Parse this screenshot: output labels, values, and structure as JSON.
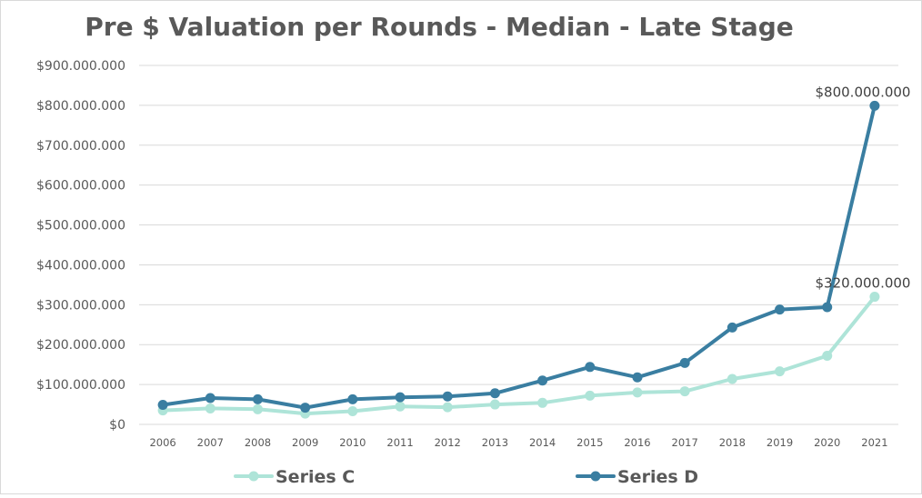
{
  "chart_data": {
    "type": "line",
    "title": "Pre $ Valuation per Rounds - Median - Late Stage",
    "xlabel": "",
    "ylabel": "",
    "x": [
      "2006",
      "2007",
      "2008",
      "2009",
      "2010",
      "2011",
      "2012",
      "2013",
      "2014",
      "2015",
      "2016",
      "2017",
      "2018",
      "2019",
      "2020",
      "2021"
    ],
    "ylim": [
      0,
      900000000
    ],
    "yticks": [
      0,
      100000000,
      200000000,
      300000000,
      400000000,
      500000000,
      600000000,
      700000000,
      800000000,
      900000000
    ],
    "ytick_labels": [
      "$0",
      "$100.000.000",
      "$200.000.000",
      "$300.000.000",
      "$400.000.000",
      "$500.000.000",
      "$600.000.000",
      "$700.000.000",
      "$800.000.000",
      "$900.000.000"
    ],
    "grid": true,
    "legend": "bottom",
    "series": [
      {
        "name": "Series C",
        "color": "#aee4d8",
        "values": [
          35000000,
          40000000,
          38000000,
          27000000,
          33000000,
          45000000,
          43000000,
          50000000,
          54000000,
          72000000,
          80000000,
          83000000,
          114000000,
          133000000,
          172000000,
          320000000
        ],
        "data_labels": {
          "15": "$320.000.000"
        }
      },
      {
        "name": "Series D",
        "color": "#3a7ea1",
        "values": [
          49000000,
          66000000,
          63000000,
          42000000,
          63000000,
          68000000,
          70000000,
          78000000,
          110000000,
          144000000,
          118000000,
          154000000,
          243000000,
          288000000,
          294000000,
          799000000
        ],
        "data_labels": {
          "15": "$800.000.000"
        }
      }
    ]
  }
}
